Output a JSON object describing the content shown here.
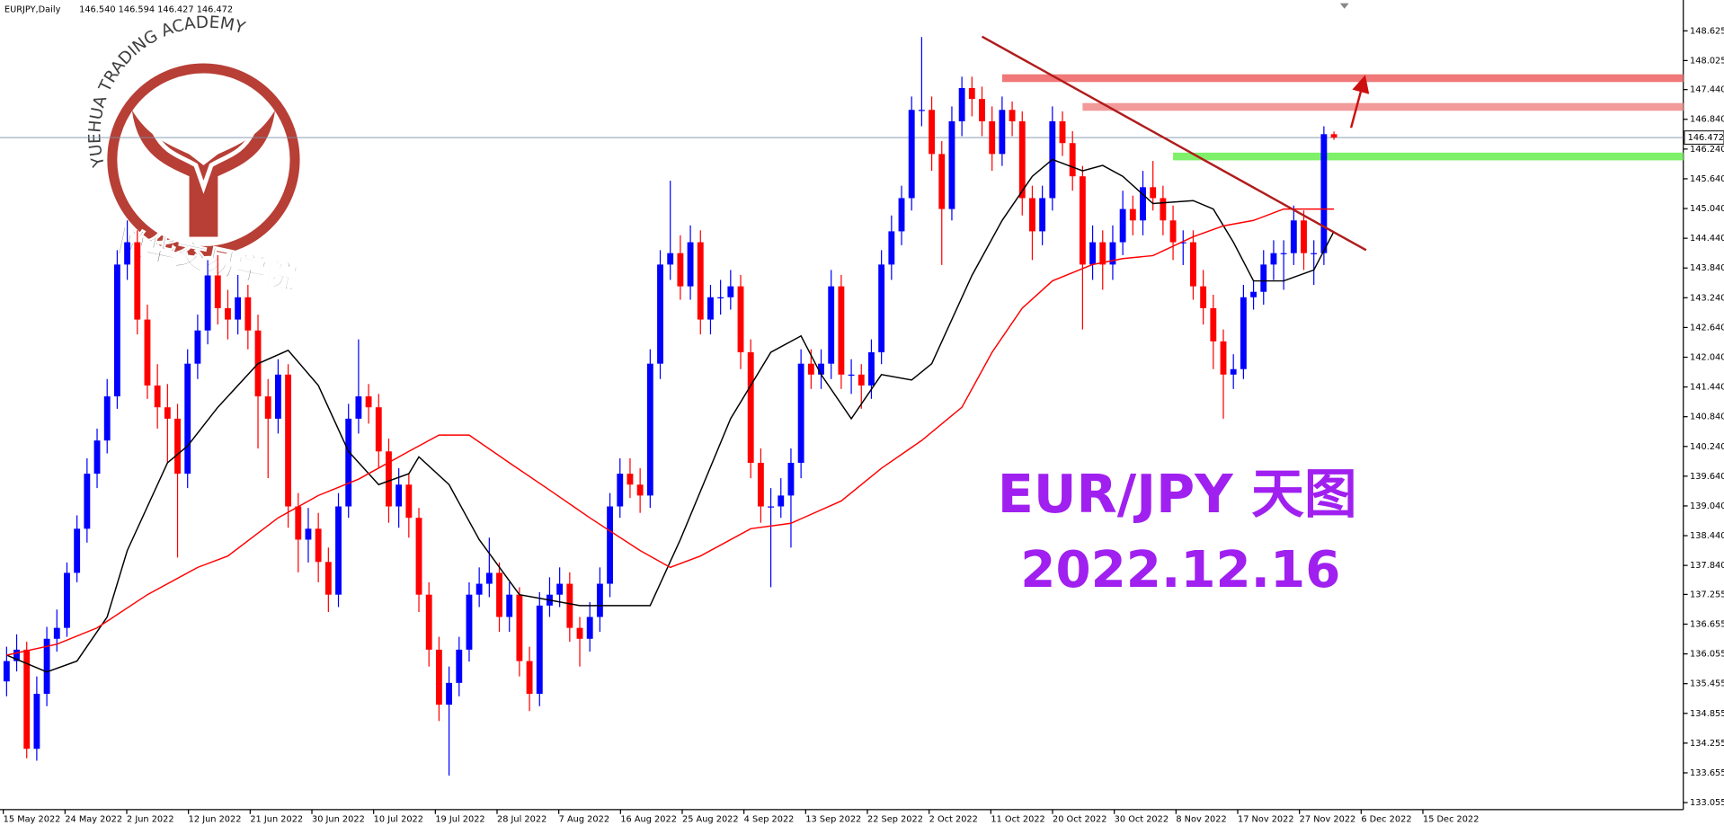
{
  "chart_data": {
    "type": "candlestick",
    "header": {
      "symbol": "EURJPY,Daily",
      "quote": "146.540 146.594 146.427 146.472"
    },
    "title": "EUR/JPY 天图",
    "subtitle": "2022.12.16",
    "logo": {
      "arc_text": "YUEHUA TRADING ACADEMY",
      "name": "悦华交易学院"
    },
    "up_color": "#0000ff",
    "down_color": "#ff0000",
    "ylim": [
      132.914,
      149.247
    ],
    "yticks": [
      148.625,
      148.025,
      {
        "value": 147.44,
        "label": "147.440"
      },
      {
        "value": 146.84,
        "label": "146.840"
      },
      {
        "value": 146.24,
        "label": "146.240"
      },
      {
        "value": 145.64,
        "label": "145.640"
      },
      {
        "value": 145.04,
        "label": "145.040"
      },
      {
        "value": 144.44,
        "label": "144.440"
      },
      {
        "value": 143.84,
        "label": "143.840"
      },
      {
        "value": 143.24,
        "label": "143.240"
      },
      {
        "value": 142.64,
        "label": "142.640"
      },
      {
        "value": 142.04,
        "label": "142.040"
      },
      {
        "value": 141.44,
        "label": "141.440"
      },
      {
        "value": 140.84,
        "label": "140.840"
      },
      {
        "value": 140.24,
        "label": "140.240"
      },
      {
        "value": 139.64,
        "label": "139.640"
      },
      {
        "value": 139.04,
        "label": "139.040"
      },
      {
        "value": 138.44,
        "label": "138.440"
      },
      {
        "value": 137.84,
        "label": "137.840"
      },
      137.255,
      136.655,
      136.055,
      135.455,
      134.855,
      134.255,
      133.655,
      133.055
    ],
    "xlabels": [
      "15 May 2022",
      "24 May 2022",
      "2 Jun 2022",
      "12 Jun 2022",
      "21 Jun 2022",
      "30 Jun 2022",
      "10 Jul 2022",
      "19 Jul 2022",
      "28 Jul 2022",
      "7 Aug 2022",
      "16 Aug 2022",
      "25 Aug 2022",
      "4 Sep 2022",
      "13 Sep 2022",
      "22 Sep 2022",
      "2 Oct 2022",
      "11 Oct 2022",
      "20 Oct 2022",
      "30 Oct 2022",
      "8 Nov 2022",
      "17 Nov 2022",
      "27 Nov 2022",
      "6 Dec 2022",
      "15 Dec 2022"
    ],
    "current_price": {
      "value": 146.472,
      "label": "146.472",
      "color": "#7b8fa8"
    },
    "candles": [
      [
        135.5,
        136.2,
        135.2,
        135.91
      ],
      [
        135.91,
        136.45,
        135.7,
        136.14
      ],
      [
        136.14,
        136.3,
        133.95,
        134.14
      ],
      [
        134.14,
        135.6,
        133.9,
        135.25
      ],
      [
        135.25,
        136.6,
        135.0,
        136.36
      ],
      [
        136.36,
        136.95,
        136.1,
        136.58
      ],
      [
        136.58,
        137.9,
        136.4,
        137.69
      ],
      [
        137.69,
        138.85,
        137.5,
        138.58
      ],
      [
        138.58,
        140.0,
        138.3,
        139.69
      ],
      [
        139.69,
        140.6,
        139.4,
        140.36
      ],
      [
        140.36,
        141.6,
        140.1,
        141.25
      ],
      [
        141.25,
        144.2,
        141.0,
        143.91
      ],
      [
        143.91,
        144.8,
        143.6,
        144.36
      ],
      [
        144.36,
        144.6,
        142.5,
        142.8
      ],
      [
        142.8,
        143.1,
        141.2,
        141.47
      ],
      [
        141.47,
        141.9,
        140.6,
        141.03
      ],
      [
        141.03,
        141.5,
        139.9,
        140.8
      ],
      [
        140.8,
        141.1,
        138.0,
        139.69
      ],
      [
        139.69,
        142.2,
        139.4,
        141.91
      ],
      [
        141.91,
        142.9,
        141.6,
        142.58
      ],
      [
        142.58,
        144.0,
        142.3,
        143.69
      ],
      [
        143.69,
        144.1,
        142.7,
        143.03
      ],
      [
        143.03,
        143.4,
        142.4,
        142.8
      ],
      [
        142.8,
        143.7,
        142.5,
        143.25
      ],
      [
        143.25,
        143.5,
        142.2,
        142.58
      ],
      [
        142.58,
        142.9,
        140.2,
        141.25
      ],
      [
        141.25,
        141.6,
        139.6,
        140.8
      ],
      [
        140.8,
        142.0,
        140.5,
        141.69
      ],
      [
        141.69,
        141.9,
        138.6,
        139.03
      ],
      [
        139.03,
        139.3,
        137.7,
        138.36
      ],
      [
        138.36,
        139.0,
        137.9,
        138.58
      ],
      [
        138.58,
        138.9,
        137.5,
        137.91
      ],
      [
        137.91,
        138.2,
        136.9,
        137.25
      ],
      [
        137.25,
        139.3,
        137.0,
        139.03
      ],
      [
        139.03,
        141.1,
        138.8,
        140.8
      ],
      [
        140.8,
        142.4,
        140.5,
        141.25
      ],
      [
        141.25,
        141.5,
        140.7,
        141.03
      ],
      [
        141.03,
        141.3,
        139.8,
        140.14
      ],
      [
        140.14,
        140.4,
        138.7,
        139.03
      ],
      [
        139.03,
        139.8,
        138.6,
        139.47
      ],
      [
        139.47,
        139.7,
        138.4,
        138.8
      ],
      [
        138.8,
        139.0,
        136.9,
        137.25
      ],
      [
        137.25,
        137.5,
        135.8,
        136.14
      ],
      [
        136.14,
        136.4,
        134.7,
        135.03
      ],
      [
        135.03,
        135.8,
        133.6,
        135.47
      ],
      [
        135.47,
        136.4,
        135.2,
        136.14
      ],
      [
        136.14,
        137.5,
        135.9,
        137.25
      ],
      [
        137.25,
        137.8,
        137.0,
        137.47
      ],
      [
        137.47,
        138.4,
        137.2,
        137.69
      ],
      [
        137.69,
        137.9,
        136.5,
        136.8
      ],
      [
        136.8,
        137.5,
        136.5,
        137.25
      ],
      [
        137.25,
        137.4,
        135.6,
        135.91
      ],
      [
        135.91,
        136.2,
        134.9,
        135.25
      ],
      [
        135.25,
        137.3,
        135.0,
        137.03
      ],
      [
        137.03,
        137.6,
        136.8,
        137.25
      ],
      [
        137.25,
        137.8,
        137.0,
        137.47
      ],
      [
        137.47,
        137.7,
        136.3,
        136.58
      ],
      [
        136.58,
        136.8,
        135.8,
        136.36
      ],
      [
        136.36,
        137.1,
        136.1,
        136.8
      ],
      [
        136.8,
        137.8,
        136.5,
        137.47
      ],
      [
        137.47,
        139.3,
        137.2,
        139.03
      ],
      [
        139.03,
        140.0,
        138.8,
        139.69
      ],
      [
        139.69,
        140.0,
        139.2,
        139.47
      ],
      [
        139.47,
        139.8,
        138.9,
        139.25
      ],
      [
        139.25,
        142.2,
        139.0,
        141.91
      ],
      [
        141.91,
        144.2,
        141.6,
        143.91
      ],
      [
        143.91,
        145.6,
        143.6,
        144.14
      ],
      [
        144.14,
        144.5,
        143.2,
        143.47
      ],
      [
        143.47,
        144.7,
        143.2,
        144.36
      ],
      [
        144.36,
        144.6,
        142.5,
        142.8
      ],
      [
        142.8,
        143.5,
        142.5,
        143.25
      ],
      [
        143.25,
        143.6,
        142.9,
        143.25
      ],
      [
        143.25,
        143.8,
        143.0,
        143.47
      ],
      [
        143.47,
        143.7,
        141.8,
        142.14
      ],
      [
        142.14,
        142.4,
        139.6,
        139.91
      ],
      [
        139.91,
        140.2,
        138.7,
        139.03
      ],
      [
        139.03,
        139.4,
        137.4,
        139.03
      ],
      [
        139.03,
        139.6,
        138.8,
        139.25
      ],
      [
        139.25,
        140.2,
        138.2,
        139.91
      ],
      [
        139.91,
        142.2,
        139.6,
        141.91
      ],
      [
        141.91,
        142.2,
        141.4,
        141.69
      ],
      [
        141.69,
        142.2,
        141.4,
        141.91
      ],
      [
        141.91,
        143.8,
        141.6,
        143.47
      ],
      [
        143.47,
        143.7,
        141.4,
        141.69
      ],
      [
        141.69,
        142.0,
        141.3,
        141.69
      ],
      [
        141.69,
        141.9,
        141.0,
        141.47
      ],
      [
        141.47,
        142.4,
        141.2,
        142.14
      ],
      [
        142.14,
        144.2,
        141.9,
        143.91
      ],
      [
        143.91,
        144.9,
        143.6,
        144.58
      ],
      [
        144.58,
        145.5,
        144.3,
        145.25
      ],
      [
        145.25,
        147.3,
        145.0,
        147.03
      ],
      [
        147.03,
        148.5,
        146.7,
        147.03
      ],
      [
        147.03,
        147.3,
        145.8,
        146.14
      ],
      [
        146.14,
        146.4,
        143.9,
        145.03
      ],
      [
        145.03,
        147.1,
        144.8,
        146.8
      ],
      [
        146.8,
        147.7,
        146.5,
        147.47
      ],
      [
        147.47,
        147.7,
        146.9,
        147.25
      ],
      [
        147.25,
        147.5,
        146.5,
        146.8
      ],
      [
        146.8,
        147.1,
        145.8,
        146.14
      ],
      [
        146.14,
        147.3,
        145.9,
        147.03
      ],
      [
        147.03,
        147.2,
        146.5,
        146.8
      ],
      [
        146.8,
        147.0,
        144.9,
        145.25
      ],
      [
        145.25,
        145.5,
        144.0,
        144.58
      ],
      [
        144.58,
        145.5,
        144.3,
        145.25
      ],
      [
        145.25,
        147.1,
        145.0,
        146.8
      ],
      [
        146.8,
        147.0,
        146.1,
        146.36
      ],
      [
        146.36,
        146.6,
        145.4,
        145.69
      ],
      [
        145.69,
        145.9,
        142.6,
        143.91
      ],
      [
        143.91,
        144.7,
        143.6,
        144.36
      ],
      [
        144.36,
        144.6,
        143.4,
        143.91
      ],
      [
        143.91,
        144.7,
        143.6,
        144.36
      ],
      [
        144.36,
        145.4,
        144.1,
        145.03
      ],
      [
        145.03,
        145.3,
        144.5,
        144.8
      ],
      [
        144.8,
        145.8,
        144.5,
        145.47
      ],
      [
        145.47,
        146.0,
        145.0,
        145.25
      ],
      [
        145.25,
        145.5,
        144.5,
        144.8
      ],
      [
        144.8,
        145.1,
        144.0,
        144.36
      ],
      [
        144.36,
        144.6,
        143.9,
        144.36
      ],
      [
        144.36,
        144.6,
        143.2,
        143.47
      ],
      [
        143.47,
        143.8,
        142.7,
        143.03
      ],
      [
        143.03,
        143.3,
        141.8,
        142.36
      ],
      [
        142.36,
        142.6,
        140.8,
        141.69
      ],
      [
        141.69,
        142.1,
        141.4,
        141.8
      ],
      [
        141.8,
        143.5,
        141.6,
        143.25
      ],
      [
        143.25,
        143.6,
        143.0,
        143.36
      ],
      [
        143.36,
        144.2,
        143.1,
        143.91
      ],
      [
        143.91,
        144.4,
        143.6,
        144.14
      ],
      [
        144.14,
        144.4,
        143.4,
        144.14
      ],
      [
        144.14,
        145.1,
        143.9,
        144.8
      ],
      [
        144.8,
        145.0,
        143.8,
        144.14
      ],
      [
        144.14,
        144.4,
        143.5,
        144.14
      ],
      [
        144.14,
        146.7,
        143.9,
        146.54
      ],
      [
        146.54,
        146.594,
        146.427,
        146.472
      ]
    ],
    "ma": [
      {
        "color": "#000000",
        "x": [
          0,
          4,
          7,
          10,
          12,
          16,
          18,
          21,
          25,
          28,
          31,
          34,
          37,
          40,
          41,
          44,
          47,
          51,
          54,
          57,
          61,
          64,
          67,
          72,
          76,
          79,
          81,
          84,
          87,
          90,
          92,
          96,
          99,
          102,
          104,
          107,
          109,
          111,
          114,
          118,
          120,
          122,
          124,
          127,
          130,
          132
        ],
        "values": [
          136.03,
          135.69,
          135.91,
          136.8,
          138.14,
          139.91,
          140.25,
          141.03,
          141.91,
          142.18,
          141.47,
          140.14,
          139.47,
          139.69,
          140.03,
          139.47,
          138.36,
          137.25,
          137.14,
          137.03,
          137.03,
          137.03,
          138.36,
          140.8,
          142.14,
          142.47,
          141.69,
          140.8,
          141.69,
          141.58,
          141.91,
          143.69,
          144.8,
          145.69,
          146.03,
          145.8,
          145.91,
          145.69,
          145.14,
          145.2,
          145.03,
          144.36,
          143.58,
          143.58,
          143.8,
          144.58
        ]
      },
      {
        "color": "#ff0000",
        "x": [
          0,
          5,
          9,
          14,
          19,
          22,
          27,
          31,
          35,
          40,
          43,
          46,
          50,
          54,
          58,
          63,
          66,
          69,
          74,
          78,
          83,
          87,
          91,
          95,
          98,
          101,
          104,
          108,
          111,
          114,
          118,
          121,
          124,
          127,
          132
        ],
        "values": [
          136.03,
          136.25,
          136.58,
          137.25,
          137.8,
          138.03,
          138.8,
          139.25,
          139.58,
          140.14,
          140.47,
          140.47,
          139.91,
          139.36,
          138.8,
          138.14,
          137.8,
          138.03,
          138.58,
          138.69,
          139.14,
          139.8,
          140.36,
          141.03,
          142.14,
          143.03,
          143.58,
          143.91,
          144.03,
          144.09,
          144.47,
          144.69,
          144.8,
          145.03,
          145.03
        ]
      }
    ],
    "trendline": {
      "color": "#b01c1c",
      "x": [
        97,
        135.2
      ],
      "values": [
        148.51,
        144.2
      ]
    },
    "levels": [
      {
        "value": 147.67,
        "from": 99,
        "color": "#f07878"
      },
      {
        "value": 147.09,
        "from": 107,
        "color": "#f29a9a"
      },
      {
        "value": 146.09,
        "from": 116,
        "color": "#7ef06a"
      }
    ],
    "arrow": {
      "color": "#cc1010",
      "x": [
        133.7,
        135
      ],
      "values": [
        146.67,
        147.65
      ]
    }
  }
}
